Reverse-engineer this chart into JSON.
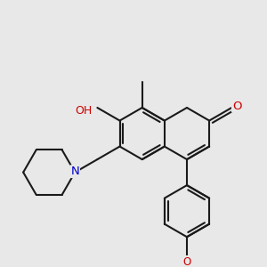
{
  "bg_color": "#e8e8e8",
  "bond_color": "#1a1a1a",
  "bond_width": 1.5,
  "atom_colors": {
    "O": "#cc0000",
    "N": "#0000cc",
    "C": "#1a1a1a"
  },
  "font_size": 9.0,
  "BL": 0.3,
  "bcx": 1.6,
  "bcy": 1.45,
  "ao_benz": 30.0
}
